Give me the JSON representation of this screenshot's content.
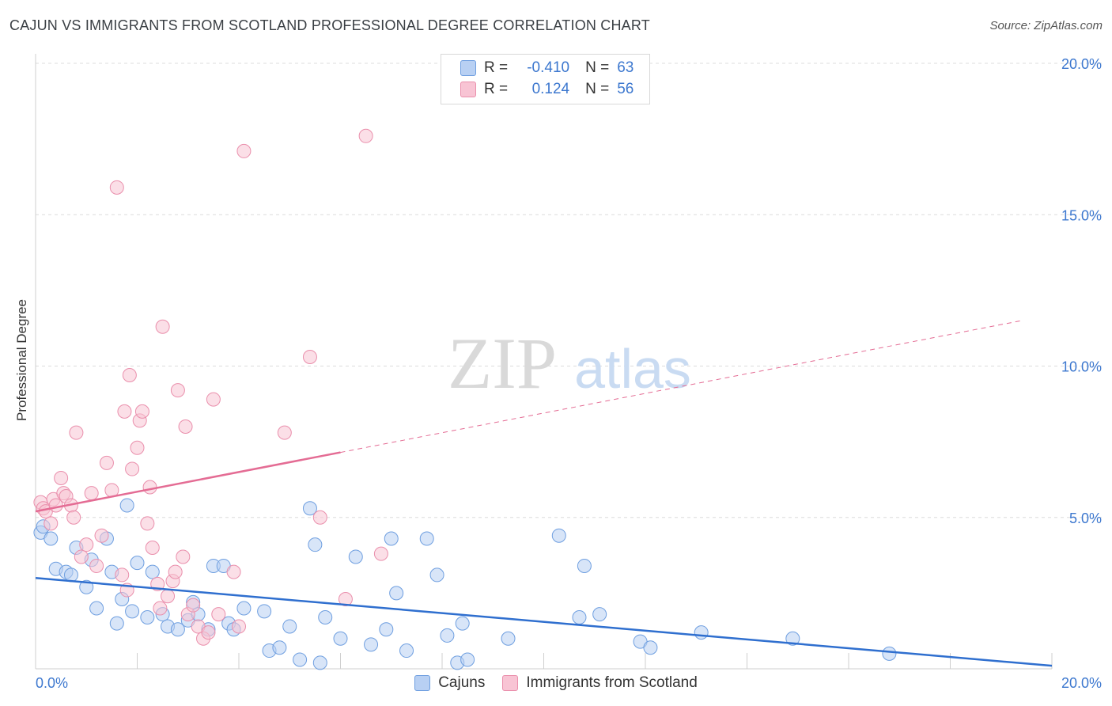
{
  "title": "CAJUN VS IMMIGRANTS FROM SCOTLAND PROFESSIONAL DEGREE CORRELATION CHART",
  "source": "Source: ZipAtlas.com",
  "watermark": {
    "zip": "ZIP",
    "atlas": "atlas"
  },
  "legend": {
    "r_label": "R =",
    "n_label": "N =",
    "rows": [
      {
        "r": "-0.410",
        "n": "63",
        "fill": "#b8d0f3",
        "stroke": "#6f9fe0"
      },
      {
        "r": "0.124",
        "n": "56",
        "fill": "#f8c4d4",
        "stroke": "#ea8fac"
      }
    ]
  },
  "chart_data": {
    "type": "scatter",
    "title": "CAJUN VS IMMIGRANTS FROM SCOTLAND PROFESSIONAL DEGREE CORRELATION CHART",
    "xlabel": "",
    "ylabel": "Professional Degree",
    "xlim": [
      0,
      20
    ],
    "ylim": [
      0,
      20
    ],
    "x_tick_labels": [
      "0.0%",
      "20.0%"
    ],
    "y_ticks": [
      5,
      10,
      15,
      20
    ],
    "y_tick_labels": [
      "5.0%",
      "10.0%",
      "15.0%",
      "20.0%"
    ],
    "grid": true,
    "legend_position": "bottom-center",
    "series": [
      {
        "name": "Cajuns",
        "color": "#6f9fe0",
        "fill": "#b8d0f3",
        "trend_color": "#2f6fcf",
        "trend": {
          "x0": 0,
          "y0": 3.0,
          "x1": 20,
          "y1": 0.1,
          "solid_until": 20
        },
        "points": [
          [
            0.1,
            4.5
          ],
          [
            0.3,
            4.3
          ],
          [
            0.4,
            3.3
          ],
          [
            0.6,
            3.2
          ],
          [
            0.7,
            3.1
          ],
          [
            0.8,
            4.0
          ],
          [
            1.0,
            2.7
          ],
          [
            1.1,
            3.6
          ],
          [
            1.2,
            2.0
          ],
          [
            1.4,
            4.3
          ],
          [
            1.5,
            3.2
          ],
          [
            1.6,
            1.5
          ],
          [
            1.7,
            2.3
          ],
          [
            1.8,
            5.4
          ],
          [
            1.9,
            1.9
          ],
          [
            2.0,
            3.5
          ],
          [
            2.2,
            1.7
          ],
          [
            2.3,
            3.2
          ],
          [
            2.5,
            1.8
          ],
          [
            2.6,
            1.4
          ],
          [
            2.8,
            1.3
          ],
          [
            3.0,
            1.6
          ],
          [
            3.1,
            2.2
          ],
          [
            3.2,
            1.8
          ],
          [
            3.4,
            1.3
          ],
          [
            3.5,
            3.4
          ],
          [
            3.7,
            3.4
          ],
          [
            3.8,
            1.5
          ],
          [
            3.9,
            1.3
          ],
          [
            4.1,
            2.0
          ],
          [
            4.5,
            1.9
          ],
          [
            4.6,
            0.6
          ],
          [
            4.8,
            0.7
          ],
          [
            5.0,
            1.4
          ],
          [
            5.2,
            0.3
          ],
          [
            5.4,
            5.3
          ],
          [
            5.5,
            4.1
          ],
          [
            5.6,
            0.2
          ],
          [
            5.7,
            1.7
          ],
          [
            6.0,
            1.0
          ],
          [
            6.3,
            3.7
          ],
          [
            6.6,
            0.8
          ],
          [
            6.9,
            1.3
          ],
          [
            7.0,
            4.3
          ],
          [
            7.1,
            2.5
          ],
          [
            7.3,
            0.6
          ],
          [
            7.7,
            4.3
          ],
          [
            7.9,
            3.1
          ],
          [
            8.1,
            1.1
          ],
          [
            8.3,
            0.2
          ],
          [
            8.4,
            1.5
          ],
          [
            8.5,
            0.3
          ],
          [
            9.3,
            1.0
          ],
          [
            10.3,
            4.4
          ],
          [
            10.7,
            1.7
          ],
          [
            10.8,
            3.4
          ],
          [
            11.1,
            1.8
          ],
          [
            11.9,
            0.9
          ],
          [
            12.1,
            0.7
          ],
          [
            13.1,
            1.2
          ],
          [
            14.9,
            1.0
          ],
          [
            16.8,
            0.5
          ],
          [
            0.15,
            4.7
          ]
        ]
      },
      {
        "name": "Immigrants from Scotland",
        "color": "#ea8fac",
        "fill": "#f8c4d4",
        "trend_color": "#e46c94",
        "trend": {
          "x0": 0,
          "y0": 5.2,
          "x1": 19.4,
          "y1": 11.5,
          "solid_until": 6.0
        },
        "points": [
          [
            0.1,
            5.5
          ],
          [
            0.15,
            5.3
          ],
          [
            0.2,
            5.2
          ],
          [
            0.3,
            4.8
          ],
          [
            0.35,
            5.6
          ],
          [
            0.4,
            5.4
          ],
          [
            0.5,
            6.3
          ],
          [
            0.55,
            5.8
          ],
          [
            0.6,
            5.7
          ],
          [
            0.7,
            5.4
          ],
          [
            0.75,
            5.0
          ],
          [
            0.8,
            7.8
          ],
          [
            0.9,
            3.7
          ],
          [
            1.0,
            4.1
          ],
          [
            1.1,
            5.8
          ],
          [
            1.2,
            3.4
          ],
          [
            1.3,
            4.4
          ],
          [
            1.4,
            6.8
          ],
          [
            1.5,
            5.9
          ],
          [
            1.6,
            15.9
          ],
          [
            1.7,
            3.1
          ],
          [
            1.75,
            8.5
          ],
          [
            1.8,
            2.6
          ],
          [
            1.85,
            9.7
          ],
          [
            1.9,
            6.6
          ],
          [
            2.0,
            7.3
          ],
          [
            2.05,
            8.2
          ],
          [
            2.1,
            8.5
          ],
          [
            2.2,
            4.8
          ],
          [
            2.25,
            6.0
          ],
          [
            2.3,
            4.0
          ],
          [
            2.4,
            2.8
          ],
          [
            2.45,
            2.0
          ],
          [
            2.5,
            11.3
          ],
          [
            2.6,
            2.4
          ],
          [
            2.7,
            2.9
          ],
          [
            2.75,
            3.2
          ],
          [
            2.8,
            9.2
          ],
          [
            2.9,
            3.7
          ],
          [
            2.95,
            8.0
          ],
          [
            3.0,
            1.8
          ],
          [
            3.1,
            2.1
          ],
          [
            3.2,
            1.4
          ],
          [
            3.3,
            1.0
          ],
          [
            3.4,
            1.2
          ],
          [
            3.5,
            8.9
          ],
          [
            3.6,
            1.8
          ],
          [
            3.9,
            3.2
          ],
          [
            4.0,
            1.4
          ],
          [
            4.1,
            17.1
          ],
          [
            4.9,
            7.8
          ],
          [
            5.4,
            10.3
          ],
          [
            5.6,
            5.0
          ],
          [
            6.1,
            2.3
          ],
          [
            6.5,
            17.6
          ],
          [
            6.8,
            3.8
          ]
        ]
      }
    ]
  }
}
